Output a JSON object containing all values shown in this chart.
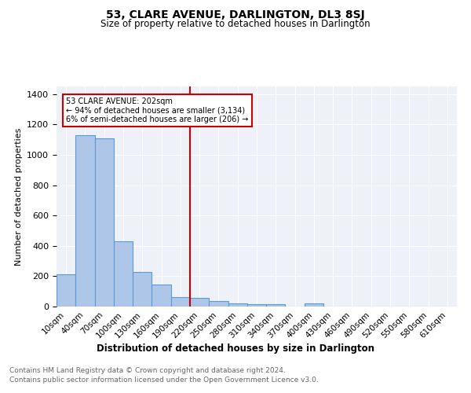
{
  "title": "53, CLARE AVENUE, DARLINGTON, DL3 8SJ",
  "subtitle": "Size of property relative to detached houses in Darlington",
  "xlabel": "Distribution of detached houses by size in Darlington",
  "ylabel": "Number of detached properties",
  "bar_labels": [
    "10sqm",
    "40sqm",
    "70sqm",
    "100sqm",
    "130sqm",
    "160sqm",
    "190sqm",
    "220sqm",
    "250sqm",
    "280sqm",
    "310sqm",
    "340sqm",
    "370sqm",
    "400sqm",
    "430sqm",
    "460sqm",
    "490sqm",
    "520sqm",
    "550sqm",
    "580sqm",
    "610sqm"
  ],
  "bar_values": [
    210,
    1130,
    1110,
    430,
    230,
    145,
    60,
    55,
    35,
    20,
    15,
    15,
    0,
    20,
    0,
    0,
    0,
    0,
    0,
    0,
    0
  ],
  "bar_color": "#aec6e8",
  "bar_edge_color": "#5b9bd5",
  "bg_color": "#eef2f8",
  "grid_color": "#ffffff",
  "vline_x": 6.5,
  "vline_color": "#cc0000",
  "annotation_text": "53 CLARE AVENUE: 202sqm\n← 94% of detached houses are smaller (3,134)\n6% of semi-detached houses are larger (206) →",
  "annotation_box_color": "#ffffff",
  "annotation_box_edge": "#cc0000",
  "ylim": [
    0,
    1450
  ],
  "yticks": [
    0,
    200,
    400,
    600,
    800,
    1000,
    1200,
    1400
  ],
  "footer_line1": "Contains HM Land Registry data © Crown copyright and database right 2024.",
  "footer_line2": "Contains public sector information licensed under the Open Government Licence v3.0."
}
